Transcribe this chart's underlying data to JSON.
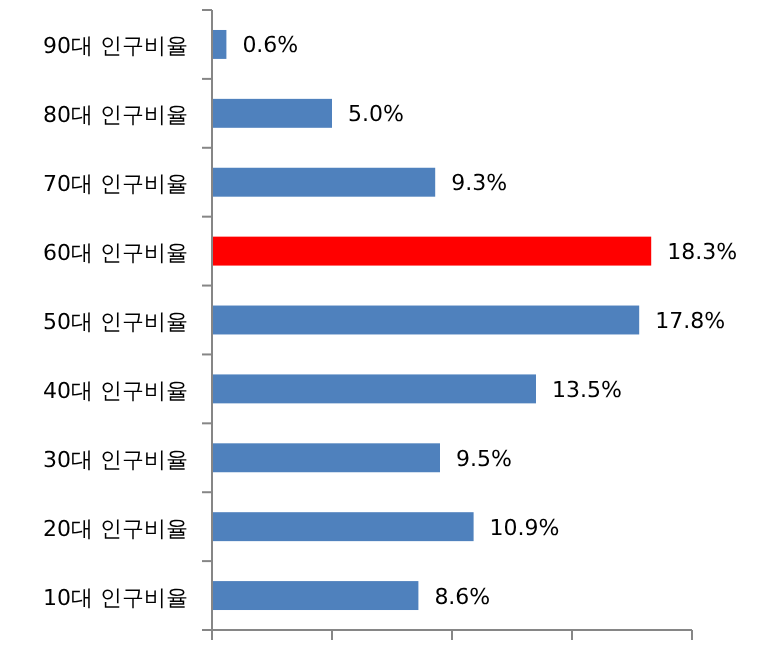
{
  "chart_data": {
    "type": "bar",
    "orientation": "horizontal",
    "categories": [
      "90대 인구비율",
      "80대 인구비율",
      "70대 인구비율",
      "60대 인구비율",
      "50대 인구비율",
      "40대 인구비율",
      "30대 인구비율",
      "20대 인구비율",
      "10대 인구비율"
    ],
    "values": [
      0.6,
      5.0,
      9.3,
      18.3,
      17.8,
      13.5,
      9.5,
      10.9,
      8.6
    ],
    "colors": [
      "#4f81bd",
      "#4f81bd",
      "#4f81bd",
      "#ff0000",
      "#4f81bd",
      "#4f81bd",
      "#4f81bd",
      "#4f81bd",
      "#4f81bd"
    ],
    "value_labels": [
      "0.6%",
      "5.0%",
      "9.3%",
      "18.3%",
      "17.8%",
      "13.5%",
      "9.5%",
      "10.9%",
      "8.6%"
    ],
    "xlim": [
      0,
      20
    ],
    "xticks": [
      {
        "value": 0,
        "label": null
      },
      {
        "value": 5,
        "label": null
      },
      {
        "value": 10,
        "label": null
      },
      {
        "value": 15,
        "label": null
      },
      {
        "value": 20,
        "label": null
      }
    ],
    "tick_labels": "y"
  }
}
